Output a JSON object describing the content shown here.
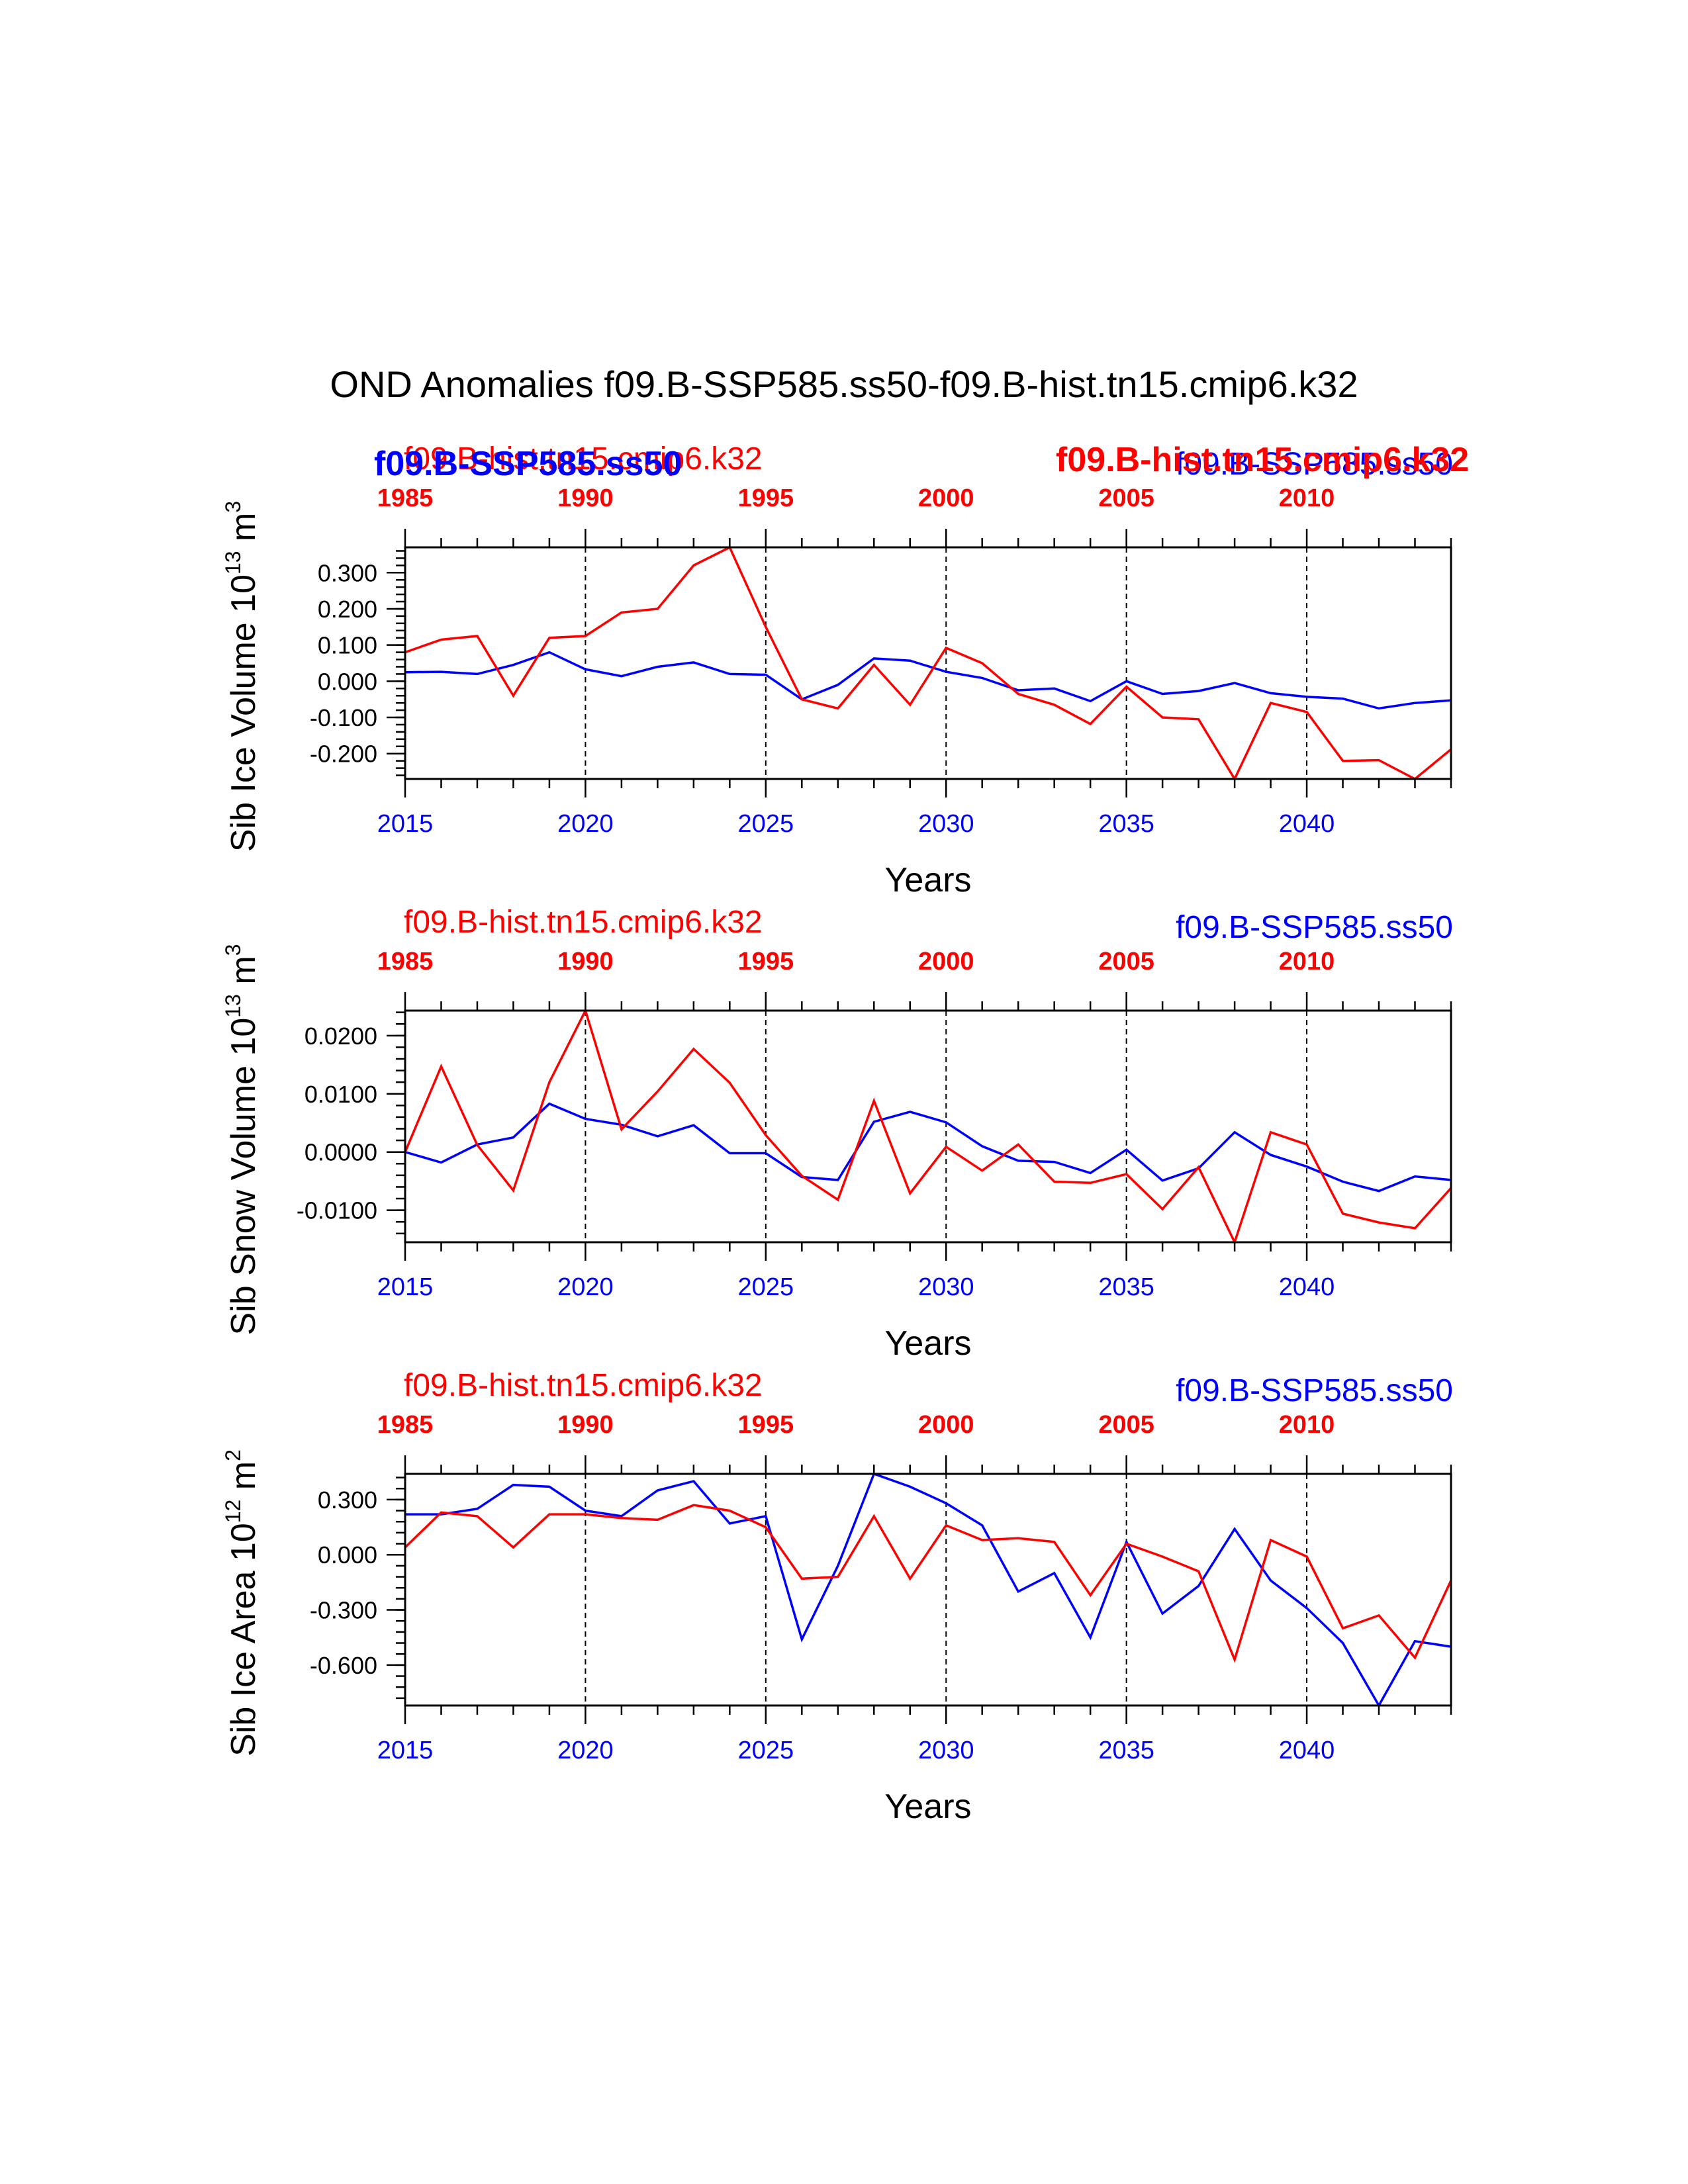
{
  "title": "OND Anomalies f09.B-SSP585.ss50-f09.B-hist.tn15.cmip6.k32",
  "colors": {
    "blue": "#0000ff",
    "red": "#ff0000",
    "axis": "#000000"
  },
  "overlay_labels": {
    "blue_bold": "f09.B-SSP585.ss50",
    "red_bold": "f09.B-hist.tn15.cmip6.k32"
  },
  "chart_data": [
    {
      "type": "line",
      "ylabel_main": "Sib Ice Volume 10",
      "ylabel_exp": "13",
      "ylabel_unit": " m",
      "ylabel_unit_exp": "3",
      "xlabel": "Years",
      "red_label": "f09.B-hist.tn15.cmip6.k32",
      "blue_label": "f09.B-SSP585.ss50",
      "xlim": [
        2015,
        2044
      ],
      "ylim": [
        -0.27,
        0.37
      ],
      "bottom_ticks": [
        "2015",
        "2020",
        "2025",
        "2030",
        "2035",
        "2040"
      ],
      "top_ticks": [
        "1985",
        "1990",
        "1995",
        "2000",
        "2005",
        "2010"
      ],
      "y_tick_values": [
        -0.2,
        -0.1,
        0.0,
        0.1,
        0.2,
        0.3
      ],
      "y_tick_labels": [
        "-0.200",
        "-0.100",
        "0.000",
        "0.100",
        "0.200",
        "0.300"
      ],
      "y_minor_step": 0.02,
      "x": [
        2015,
        2016,
        2017,
        2018,
        2019,
        2020,
        2021,
        2022,
        2023,
        2024,
        2025,
        2026,
        2027,
        2028,
        2029,
        2030,
        2031,
        2032,
        2033,
        2034,
        2035,
        2036,
        2037,
        2038,
        2039,
        2040,
        2041,
        2042,
        2043,
        2044
      ],
      "series": [
        {
          "name": "f09.B-SSP585.ss50",
          "color": "blue",
          "values": [
            0.025,
            0.026,
            0.02,
            0.045,
            0.08,
            0.033,
            0.014,
            0.04,
            0.052,
            0.02,
            0.018,
            -0.05,
            -0.01,
            0.063,
            0.057,
            0.026,
            0.009,
            -0.025,
            -0.02,
            -0.055,
            0.0,
            -0.035,
            -0.027,
            -0.005,
            -0.033,
            -0.043,
            -0.048,
            -0.075,
            -0.06,
            -0.053
          ]
        },
        {
          "name": "f09.B-hist.tn15.cmip6.k32",
          "color": "red",
          "values": [
            0.08,
            0.115,
            0.125,
            -0.04,
            0.12,
            0.125,
            0.19,
            0.2,
            0.32,
            0.37,
            0.15,
            -0.05,
            -0.075,
            0.045,
            -0.065,
            0.092,
            0.05,
            -0.035,
            -0.065,
            -0.118,
            -0.015,
            -0.1,
            -0.105,
            -0.27,
            -0.06,
            -0.085,
            -0.22,
            -0.218,
            -0.27,
            -0.188
          ]
        }
      ]
    },
    {
      "type": "line",
      "ylabel_main": "Sib Snow Volume 10",
      "ylabel_exp": "13",
      "ylabel_unit": " m",
      "ylabel_unit_exp": "3",
      "xlabel": "Years",
      "red_label": "f09.B-hist.tn15.cmip6.k32",
      "blue_label": "f09.B-SSP585.ss50",
      "xlim": [
        2015,
        2044
      ],
      "ylim": [
        -0.0155,
        0.0243
      ],
      "bottom_ticks": [
        "2015",
        "2020",
        "2025",
        "2030",
        "2035",
        "2040"
      ],
      "top_ticks": [
        "1985",
        "1990",
        "1995",
        "2000",
        "2005",
        "2010"
      ],
      "y_tick_values": [
        -0.01,
        0.0,
        0.01,
        0.02
      ],
      "y_tick_labels": [
        "-0.0100",
        "0.0000",
        "0.0100",
        "0.0200"
      ],
      "y_minor_step": 0.002,
      "x": [
        2015,
        2016,
        2017,
        2018,
        2019,
        2020,
        2021,
        2022,
        2023,
        2024,
        2025,
        2026,
        2027,
        2028,
        2029,
        2030,
        2031,
        2032,
        2033,
        2034,
        2035,
        2036,
        2037,
        2038,
        2039,
        2040,
        2041,
        2042,
        2043,
        2044
      ],
      "series": [
        {
          "name": "f09.B-SSP585.ss50",
          "color": "blue",
          "values": [
            0.0,
            -0.0018,
            0.0013,
            0.0025,
            0.0083,
            0.0057,
            0.0047,
            0.0027,
            0.0046,
            -0.0002,
            -0.0002,
            -0.0043,
            -0.0048,
            0.0052,
            0.0069,
            0.0051,
            0.001,
            -0.0015,
            -0.0017,
            -0.0036,
            0.0004,
            -0.0049,
            -0.0028,
            0.0034,
            -0.0005,
            -0.0025,
            -0.0051,
            -0.0067,
            -0.0042,
            -0.0048
          ]
        },
        {
          "name": "f09.B-hist.tn15.cmip6.k32",
          "color": "red",
          "values": [
            0.0,
            0.0147,
            0.0012,
            -0.0066,
            0.012,
            0.0243,
            0.0039,
            0.0104,
            0.0177,
            0.0119,
            0.0029,
            -0.0041,
            -0.0082,
            0.0088,
            -0.0071,
            0.0009,
            -0.0032,
            0.0013,
            -0.0051,
            -0.0053,
            -0.0038,
            -0.0098,
            -0.0026,
            -0.0155,
            0.0034,
            0.0013,
            -0.0106,
            -0.0121,
            -0.0131,
            -0.0062
          ]
        }
      ]
    },
    {
      "type": "line",
      "ylabel_main": "Sib Ice Area 10",
      "ylabel_exp": "12",
      "ylabel_unit": " m",
      "ylabel_unit_exp": "2",
      "xlabel": "Years",
      "red_label": "f09.B-hist.tn15.cmip6.k32",
      "blue_label": "f09.B-SSP585.ss50",
      "xlim": [
        2015,
        2044
      ],
      "ylim": [
        -0.82,
        0.44
      ],
      "bottom_ticks": [
        "2015",
        "2020",
        "2025",
        "2030",
        "2035",
        "2040"
      ],
      "top_ticks": [
        "1985",
        "1990",
        "1995",
        "2000",
        "2005",
        "2010"
      ],
      "y_tick_values": [
        -0.6,
        -0.3,
        0.0,
        0.3
      ],
      "y_tick_labels": [
        "-0.600",
        "-0.300",
        "0.000",
        "0.300"
      ],
      "y_minor_step": 0.06,
      "x": [
        2015,
        2016,
        2017,
        2018,
        2019,
        2020,
        2021,
        2022,
        2023,
        2024,
        2025,
        2026,
        2027,
        2028,
        2029,
        2030,
        2031,
        2032,
        2033,
        2034,
        2035,
        2036,
        2037,
        2038,
        2039,
        2040,
        2041,
        2042,
        2043,
        2044
      ],
      "series": [
        {
          "name": "f09.B-SSP585.ss50",
          "color": "blue",
          "values": [
            0.22,
            0.22,
            0.25,
            0.38,
            0.37,
            0.24,
            0.21,
            0.35,
            0.4,
            0.17,
            0.21,
            -0.46,
            -0.06,
            0.44,
            0.37,
            0.28,
            0.16,
            -0.2,
            -0.1,
            -0.45,
            0.07,
            -0.32,
            -0.17,
            0.14,
            -0.14,
            -0.29,
            -0.48,
            -0.82,
            -0.47,
            -0.5
          ]
        },
        {
          "name": "f09.B-hist.tn15.cmip6.k32",
          "color": "red",
          "values": [
            0.04,
            0.23,
            0.21,
            0.04,
            0.22,
            0.22,
            0.2,
            0.19,
            0.27,
            0.24,
            0.15,
            -0.13,
            -0.12,
            0.21,
            -0.13,
            0.16,
            0.08,
            0.09,
            0.07,
            -0.22,
            0.06,
            -0.01,
            -0.09,
            -0.57,
            0.08,
            -0.01,
            -0.4,
            -0.33,
            -0.56,
            -0.14
          ]
        }
      ]
    }
  ]
}
